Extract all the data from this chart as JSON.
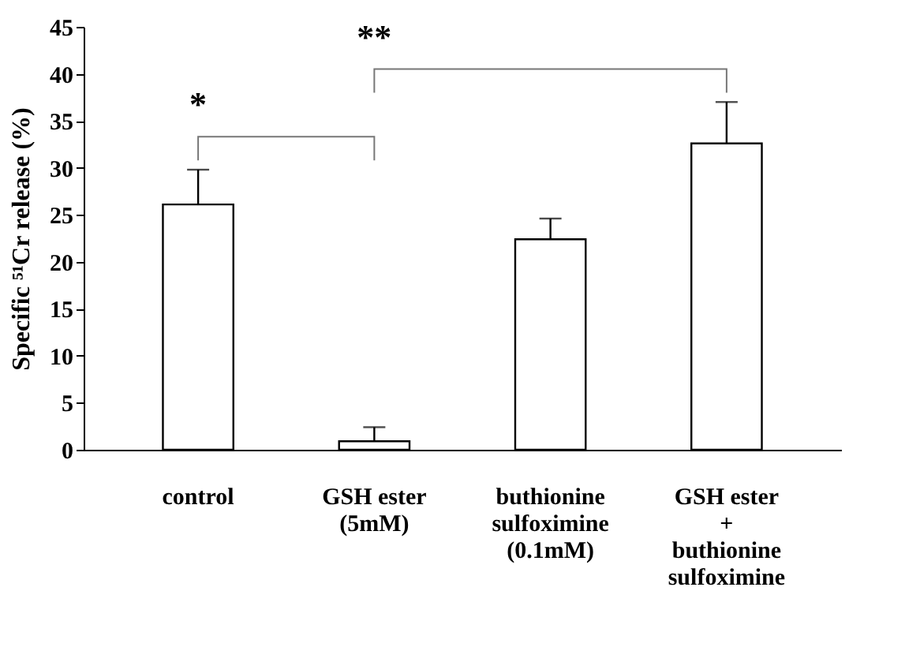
{
  "chart_data": {
    "type": "bar",
    "ylabel": "Specific ⁵¹Cr release (%)",
    "categories": [
      "control",
      "GSH ester\n(5mM)",
      "buthionine\nsulfoximine\n(0.1mM)",
      "GSH ester\n+\nbuthionine\nsulfoximine"
    ],
    "values": [
      26.1,
      0.9,
      22.4,
      32.6
    ],
    "errors": [
      [
        26.1,
        29.8
      ],
      [
        0.9,
        2.4
      ],
      [
        22.4,
        24.6
      ],
      [
        32.6,
        37.0
      ]
    ],
    "color": "#ffffff",
    "ylim": [
      0,
      45
    ],
    "yticks": [
      0,
      5,
      10,
      15,
      20,
      25,
      30,
      35,
      40,
      45
    ],
    "grid": false,
    "annotations": [
      "*",
      "**"
    ]
  }
}
